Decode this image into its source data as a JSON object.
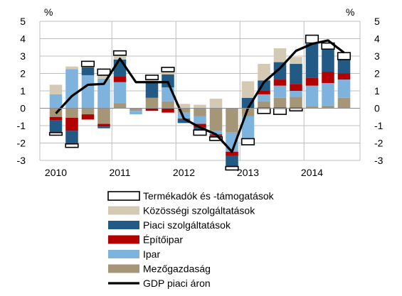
{
  "chart_data": {
    "type": "bar",
    "y_unit_left": "%",
    "y_unit_right": "%",
    "ylim": [
      -3,
      5
    ],
    "yticks": [
      -3,
      -2,
      -1,
      0,
      1,
      2,
      3,
      4,
      5
    ],
    "x_labels": [
      "2010",
      "2011",
      "2012",
      "2013",
      "2014"
    ],
    "quarters": [
      "2010 Q1",
      "2010 Q2",
      "2010 Q3",
      "2010 Q4",
      "2011 Q1",
      "2011 Q2",
      "2011 Q3",
      "2011 Q4",
      "2012 Q1",
      "2012 Q2",
      "2012 Q3",
      "2012 Q4",
      "2013 Q1",
      "2013 Q2",
      "2013 Q3",
      "2013 Q4",
      "2014 Q1",
      "2014 Q2",
      "2014 Q3"
    ],
    "grid": true,
    "legend_position": "bottom",
    "series": [
      {
        "name": "Termékadók és -támogatások",
        "kind": "bar",
        "color": "#ffffff",
        "border": "#000000",
        "values": [
          -0.15,
          -0.2,
          0.3,
          0.35,
          0.25,
          0.0,
          0.25,
          0.25,
          0.0,
          -0.3,
          -0.2,
          -0.2,
          -0.35,
          -0.3,
          -0.35,
          -0.15,
          0.45,
          0.35,
          0.4
        ]
      },
      {
        "name": "Közösségi szolgáltatások",
        "kind": "bar",
        "color": "#d4c9b3",
        "values": [
          0.55,
          0.15,
          0.05,
          0.2,
          0.25,
          0.0,
          0.2,
          0.15,
          0.25,
          0.2,
          0.55,
          0.0,
          0.95,
          0.95,
          0.8,
          0.4,
          0.05,
          0.0,
          0.0
        ]
      },
      {
        "name": "Piaci szolgáltatások",
        "kind": "bar",
        "color": "#215a84",
        "values": [
          -0.7,
          -0.75,
          0.45,
          -0.1,
          0.95,
          0.0,
          0.85,
          0.75,
          -0.2,
          -0.15,
          -0.05,
          -0.6,
          0.6,
          0.6,
          1.0,
          1.15,
          1.95,
          1.3,
          0.8
        ]
      },
      {
        "name": "Építőipar",
        "kind": "bar",
        "color": "#b30000",
        "values": [
          -0.2,
          -0.75,
          -0.3,
          -0.15,
          0.35,
          0.0,
          -0.15,
          -0.25,
          -0.05,
          -0.2,
          -0.1,
          -0.25,
          0.0,
          0.2,
          0.35,
          0.4,
          0.45,
          0.65,
          0.35
        ]
      },
      {
        "name": "Ipar",
        "kind": "bar",
        "color": "#7eb3dd",
        "values": [
          0.8,
          2.25,
          1.9,
          1.7,
          1.2,
          -0.2,
          0.0,
          0.8,
          -0.35,
          -0.45,
          -0.2,
          -1.1,
          -1.3,
          0.4,
          0.7,
          0.35,
          1.2,
          1.3,
          1.05
        ]
      },
      {
        "name": "Mezőgazdaság",
        "kind": "bar",
        "color": "#a59678",
        "values": [
          -0.5,
          -0.55,
          -0.35,
          -0.9,
          0.3,
          -0.15,
          0.6,
          0.4,
          -0.25,
          -0.45,
          -1.3,
          -1.4,
          -0.45,
          0.4,
          0.6,
          0.65,
          0.1,
          0.15,
          0.6
        ]
      },
      {
        "name": "GDP piaci áron",
        "kind": "line",
        "color": "#000000",
        "values": [
          -0.3,
          0.7,
          1.35,
          1.4,
          2.85,
          1.5,
          1.5,
          1.5,
          -0.6,
          -1.1,
          -1.5,
          -2.5,
          0.0,
          1.5,
          2.3,
          3.3,
          3.7,
          3.9,
          3.2
        ]
      }
    ]
  }
}
